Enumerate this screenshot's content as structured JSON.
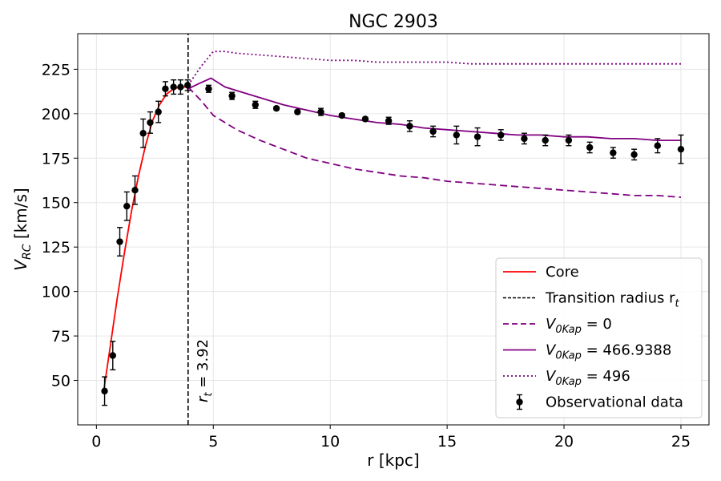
{
  "chart_data": {
    "type": "line",
    "title": "NGC 2903",
    "xlabel": "r [kpc]",
    "ylabel": "V_RC [km/s]",
    "ylabel_main": "V",
    "ylabel_sub": "RC",
    "ylabel_unit": " [km/s]",
    "xlim": [
      -0.8,
      26.2
    ],
    "ylim": [
      25,
      245
    ],
    "xticks": [
      0,
      5,
      10,
      15,
      20,
      25
    ],
    "yticks": [
      50,
      75,
      100,
      125,
      150,
      175,
      200,
      225
    ],
    "grid": true,
    "legend_position": "lower-right",
    "transition_radius": 3.92,
    "annotation": "r_t = 3.92",
    "annotation_main": "r",
    "annotation_sub": "t",
    "annotation_rest": " = 3.92",
    "colors": {
      "core": "#ff0000",
      "model": "#800080",
      "transition": "#000000",
      "data": "#000000"
    },
    "series": [
      {
        "name": "Core",
        "style": "solid",
        "color": "#ff0000",
        "x": [
          0.3,
          0.6,
          0.9,
          1.2,
          1.5,
          1.8,
          2.1,
          2.4,
          2.7,
          3.0,
          3.3,
          3.6,
          3.92
        ],
        "y": [
          43,
          70,
          97,
          122,
          145,
          165,
          182,
          196,
          205,
          211,
          214,
          215,
          215
        ]
      },
      {
        "name": "Transition radius r_t",
        "style": "dashed-vertical",
        "color": "#000000",
        "x": [
          3.92,
          3.92
        ],
        "y": [
          25,
          245
        ]
      },
      {
        "name": "V_0Kap = 0",
        "style": "dashed",
        "color": "#800080",
        "x": [
          3.92,
          4.5,
          5,
          6,
          7,
          8,
          9,
          10,
          11,
          12,
          13,
          14,
          15,
          16,
          17,
          18,
          19,
          20,
          21,
          22,
          23,
          24,
          25
        ],
        "y": [
          215,
          207,
          199,
          191,
          185,
          180,
          175,
          172,
          169,
          167,
          165,
          164,
          162,
          161,
          160,
          159,
          158,
          157,
          156,
          155,
          154,
          154,
          153
        ]
      },
      {
        "name": "V_0Kap = 466.9388",
        "style": "solid",
        "color": "#800080",
        "x": [
          3.92,
          4.4,
          4.9,
          5.5,
          6,
          7,
          8,
          9,
          10,
          11,
          12,
          13,
          14,
          15,
          16,
          17,
          18,
          19,
          20,
          21,
          22,
          23,
          24,
          25
        ],
        "y": [
          214,
          217,
          220,
          215,
          213,
          209,
          205,
          202,
          199,
          197,
          195,
          194,
          192,
          191,
          190,
          189,
          188,
          188,
          187,
          187,
          186,
          186,
          185,
          185
        ]
      },
      {
        "name": "V_0Kap = 496",
        "style": "dotted",
        "color": "#800080",
        "x": [
          3.92,
          4.5,
          5,
          5.5,
          6,
          7,
          8,
          9,
          10,
          11,
          12,
          13,
          14,
          15,
          16,
          17,
          18,
          19,
          20,
          21,
          22,
          23,
          24,
          25
        ],
        "y": [
          216,
          227,
          235,
          235,
          234,
          233,
          232,
          231,
          230,
          230,
          229,
          229,
          229,
          229,
          228,
          228,
          228,
          228,
          228,
          228,
          228,
          228,
          228,
          228
        ]
      },
      {
        "name": "Observational data",
        "style": "errorbar",
        "color": "#000000",
        "points": [
          {
            "x": 0.35,
            "y": 44,
            "err": 8
          },
          {
            "x": 0.7,
            "y": 64,
            "err": 8
          },
          {
            "x": 1.0,
            "y": 128,
            "err": 8
          },
          {
            "x": 1.3,
            "y": 148,
            "err": 8
          },
          {
            "x": 1.65,
            "y": 157,
            "err": 8
          },
          {
            "x": 2.0,
            "y": 189,
            "err": 8
          },
          {
            "x": 2.3,
            "y": 195,
            "err": 6
          },
          {
            "x": 2.65,
            "y": 201,
            "err": 6
          },
          {
            "x": 2.95,
            "y": 214,
            "err": 4
          },
          {
            "x": 3.3,
            "y": 215,
            "err": 4
          },
          {
            "x": 3.6,
            "y": 215,
            "err": 4
          },
          {
            "x": 3.9,
            "y": 216,
            "err": 3
          },
          {
            "x": 4.8,
            "y": 214,
            "err": 2
          },
          {
            "x": 5.8,
            "y": 210,
            "err": 2
          },
          {
            "x": 6.8,
            "y": 205,
            "err": 2
          },
          {
            "x": 7.7,
            "y": 203,
            "err": 1
          },
          {
            "x": 8.6,
            "y": 201,
            "err": 1
          },
          {
            "x": 9.6,
            "y": 201,
            "err": 2
          },
          {
            "x": 10.5,
            "y": 199,
            "err": 1
          },
          {
            "x": 11.5,
            "y": 197,
            "err": 1
          },
          {
            "x": 12.5,
            "y": 196,
            "err": 2
          },
          {
            "x": 13.4,
            "y": 193,
            "err": 3
          },
          {
            "x": 14.4,
            "y": 190,
            "err": 3
          },
          {
            "x": 15.4,
            "y": 188,
            "err": 5
          },
          {
            "x": 16.3,
            "y": 187,
            "err": 5
          },
          {
            "x": 17.3,
            "y": 188,
            "err": 3
          },
          {
            "x": 18.3,
            "y": 186,
            "err": 3
          },
          {
            "x": 19.2,
            "y": 185,
            "err": 3
          },
          {
            "x": 20.2,
            "y": 185,
            "err": 3
          },
          {
            "x": 21.1,
            "y": 181,
            "err": 3
          },
          {
            "x": 22.1,
            "y": 178,
            "err": 3
          },
          {
            "x": 23.0,
            "y": 177,
            "err": 3
          },
          {
            "x": 24.0,
            "y": 182,
            "err": 4
          },
          {
            "x": 25.0,
            "y": 180,
            "err": 8
          }
        ]
      }
    ],
    "legend": [
      {
        "key": "core",
        "main": "Core",
        "sub": "",
        "rest": "",
        "style": "solid",
        "color": "#ff0000"
      },
      {
        "key": "transition",
        "main": "Transition radius r",
        "sub": "t",
        "rest": "",
        "style": "dashed-thin",
        "color": "#000000"
      },
      {
        "key": "v0",
        "main": "V",
        "sub": "0Kap",
        "rest": " = 0",
        "style": "dashed",
        "color": "#800080"
      },
      {
        "key": "v466",
        "main": "V",
        "sub": "0Kap",
        "rest": " = 466.9388",
        "style": "solid",
        "color": "#800080"
      },
      {
        "key": "v496",
        "main": "V",
        "sub": "0Kap",
        "rest": " = 496",
        "style": "dotted",
        "color": "#800080"
      },
      {
        "key": "data",
        "main": "Observational data",
        "sub": "",
        "rest": "",
        "style": "errorbar",
        "color": "#000000"
      }
    ]
  }
}
